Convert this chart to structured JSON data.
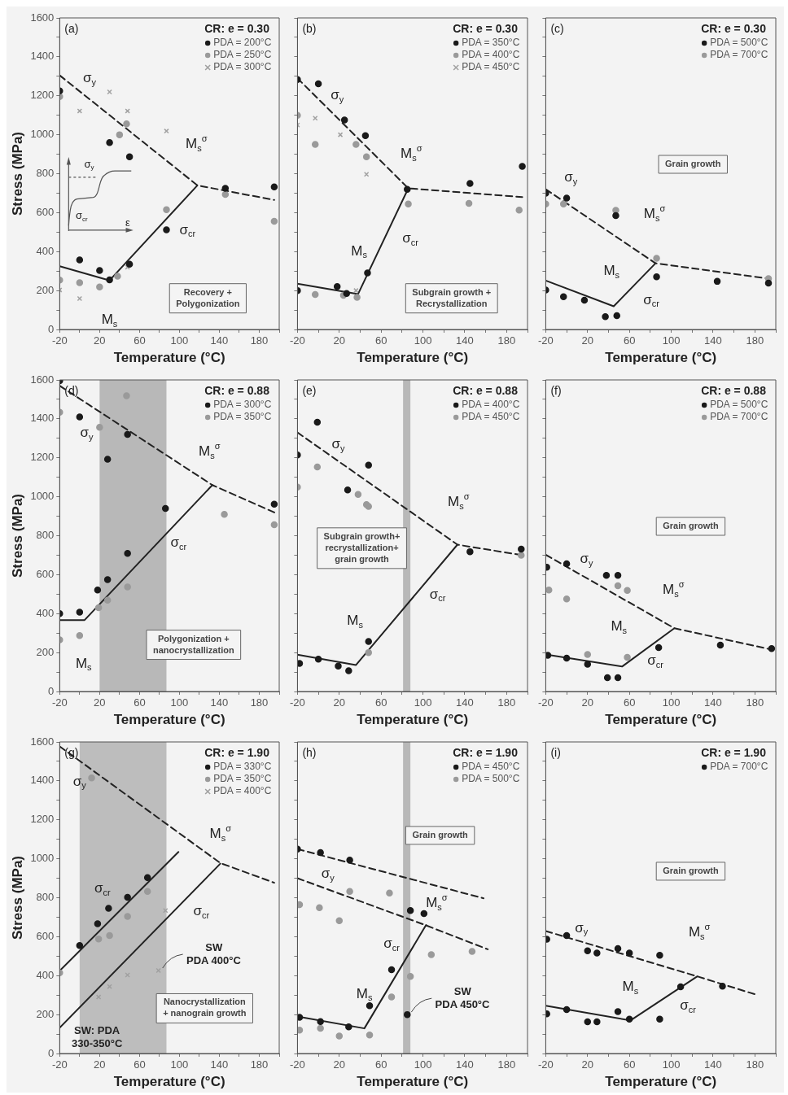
{
  "chart_data": [
    {
      "type": "scatter",
      "title": "(a)",
      "legend_title": "CR: e = 0.30",
      "legend": "top right",
      "xlabel": "Temperature (°C)",
      "ylabel": "Stress (MPa)",
      "xlim": [
        -20,
        200
      ],
      "ylim": [
        0,
        1600
      ],
      "xticks": [
        -20,
        {
          "value": 0,
          "label": null
        },
        20,
        {
          "value": 40,
          "label": null
        },
        60,
        {
          "value": 80,
          "label": null
        },
        100,
        {
          "value": 120,
          "label": null
        },
        140,
        {
          "value": 160,
          "label": null
        },
        180,
        {
          "value": 200,
          "label": null
        }
      ],
      "yticks": [
        0,
        {
          "value": 100,
          "label": null
        },
        200,
        {
          "value": 300,
          "label": null
        },
        400,
        {
          "value": 500,
          "label": null
        },
        600,
        {
          "value": 700,
          "label": null
        },
        800,
        {
          "value": 900,
          "label": null
        },
        1000,
        {
          "value": 1100,
          "label": null
        },
        1200,
        {
          "value": 1300,
          "label": null
        },
        1400,
        {
          "value": 1500,
          "label": null
        },
        1600
      ],
      "series": [
        {
          "name": "PDA = 200°C",
          "color": "#1a1a1a",
          "marker": "circle",
          "x": [
            -20,
            0,
            20,
            30,
            30,
            50,
            50,
            87,
            146,
            195
          ],
          "values": [
            1225,
            357,
            303,
            255,
            960,
            887,
            335,
            512,
            725,
            732
          ]
        },
        {
          "name": "PDA = 250°C",
          "color": "#9a9a9a",
          "marker": "circle",
          "x": [
            -20,
            -20,
            0,
            20,
            38,
            40,
            47,
            87,
            146,
            195
          ],
          "values": [
            1196,
            254,
            240,
            218,
            274,
            1000,
            1056,
            615,
            693,
            556
          ]
        },
        {
          "name": "PDA = 300°C",
          "color": "#a0a0a0",
          "marker": "cross",
          "x": [
            -20,
            0,
            0,
            30,
            48,
            48,
            87
          ],
          "values": [
            203,
            1122,
            159,
            1220,
            1122,
            320,
            1019
          ]
        },
        {
          "type": "line",
          "color": "#222222",
          "marker": "none",
          "line_style": "dashed",
          "x": [
            -20,
            118,
            195
          ],
          "values": [
            1305,
            740,
            665
          ]
        },
        {
          "type": "line",
          "color": "#222222",
          "marker": "none",
          "line_style": "solid",
          "x": [
            -20,
            30,
            118
          ],
          "values": [
            325,
            252,
            740
          ]
        }
      ],
      "annotations": [
        "Recovery +\nPolygonization",
        "σ$_{y}$",
        "σ$_{cr}$",
        "ε",
        "σ$_{y}$",
        "M$_{s}$$^{σ}$",
        "σ$_{cr}$",
        "M$_{s}$"
      ]
    },
    {
      "type": "scatter",
      "title": "(b)",
      "legend_title": "CR: e = 0.30",
      "legend": "top right",
      "xlabel": "Temperature (°C)",
      "tick_labels": "x",
      "xlim": [
        -20,
        200
      ],
      "ylim": [
        0,
        1600
      ],
      "xticks": [
        -20,
        {
          "value": 0,
          "label": null
        },
        20,
        {
          "value": 40,
          "label": null
        },
        60,
        {
          "value": 80,
          "label": null
        },
        100,
        {
          "value": 120,
          "label": null
        },
        140,
        {
          "value": 160,
          "label": null
        },
        180,
        {
          "value": 200,
          "label": null
        }
      ],
      "yticks": [
        0,
        {
          "value": 100,
          "label": null
        },
        200,
        {
          "value": 300,
          "label": null
        },
        400,
        {
          "value": 500,
          "label": null
        },
        600,
        {
          "value": 700,
          "label": null
        },
        800,
        {
          "value": 900,
          "label": null
        },
        1000,
        {
          "value": 1100,
          "label": null
        },
        1200,
        {
          "value": 1300,
          "label": null
        },
        1400,
        {
          "value": 1500,
          "label": null
        },
        1600
      ],
      "series": [
        {
          "name": "PDA = 350°C",
          "color": "#1a1a1a",
          "marker": "circle",
          "x": [
            -20,
            0,
            25,
            45,
            -20,
            18,
            27,
            47,
            85,
            145,
            195
          ],
          "values": [
            1284,
            1262,
            1076,
            995,
            200,
            220,
            185,
            290,
            720,
            750,
            838
          ]
        },
        {
          "name": "PDA = 400°C",
          "color": "#9a9a9a",
          "marker": "circle",
          "x": [
            -20,
            -3,
            36,
            46,
            86,
            144,
            192,
            -3,
            24,
            37
          ],
          "values": [
            1100,
            950,
            950,
            887,
            644,
            648,
            613,
            180,
            175,
            165
          ]
        },
        {
          "name": "PDA = 450°C",
          "color": "#a0a0a0",
          "marker": "cross",
          "x": [
            -20,
            -3,
            21,
            46,
            36
          ],
          "values": [
            1050,
            1085,
            1000,
            797,
            200
          ]
        },
        {
          "type": "line",
          "color": "#222222",
          "marker": "none",
          "line_style": "dashed",
          "x": [
            -20,
            86,
            195
          ],
          "values": [
            1290,
            725,
            680
          ]
        },
        {
          "type": "line",
          "color": "#222222",
          "marker": "none",
          "line_style": "solid",
          "x": [
            -20,
            38,
            86
          ],
          "values": [
            235,
            182,
            725
          ]
        }
      ],
      "annotations": [
        "Subgrain growth +\nRecrystallization",
        "σ$_{y}$",
        "M$_{s}$$^{σ}$",
        "M$_{s}$",
        "σ$_{cr}$"
      ]
    },
    {
      "type": "scatter",
      "title": "(c)",
      "legend_title": "CR: e = 0.30",
      "legend": "top right",
      "xlabel": "Temperature (°C)",
      "tick_labels": "x",
      "xlim": [
        -20,
        200
      ],
      "ylim": [
        0,
        1600
      ],
      "xticks": [
        -20,
        {
          "value": 0,
          "label": null
        },
        20,
        {
          "value": 40,
          "label": null
        },
        60,
        {
          "value": 80,
          "label": null
        },
        100,
        {
          "value": 120,
          "label": null
        },
        140,
        {
          "value": 160,
          "label": null
        },
        180,
        {
          "value": 200,
          "label": null
        }
      ],
      "yticks": [
        0,
        {
          "value": 100,
          "label": null
        },
        200,
        {
          "value": 300,
          "label": null
        },
        400,
        {
          "value": 500,
          "label": null
        },
        600,
        {
          "value": 700,
          "label": null
        },
        800,
        {
          "value": 900,
          "label": null
        },
        1000,
        {
          "value": 1100,
          "label": null
        },
        1200,
        {
          "value": 1300,
          "label": null
        },
        1400,
        {
          "value": 1500,
          "label": null
        },
        1600
      ],
      "series": [
        {
          "name": "PDA = 500°C",
          "color": "#1a1a1a",
          "marker": "circle",
          "x": [
            -20,
            0,
            47,
            -20,
            -3,
            17,
            37,
            48,
            86,
            144,
            193
          ],
          "values": [
            700,
            675,
            585,
            203,
            168,
            150,
            66,
            71,
            270,
            247,
            238
          ]
        },
        {
          "name": "PDA = 700°C",
          "color": "#9a9a9a",
          "marker": "circle",
          "x": [
            -20,
            -3,
            47,
            86,
            193
          ],
          "values": [
            644,
            644,
            612,
            366,
            261
          ]
        },
        {
          "type": "line",
          "color": "#222222",
          "marker": "none",
          "line_style": "dashed",
          "x": [
            -20,
            85,
            195
          ],
          "values": [
            720,
            340,
            260
          ]
        },
        {
          "type": "line",
          "color": "#222222",
          "marker": "none",
          "line_style": "solid",
          "x": [
            -20,
            45,
            85
          ],
          "values": [
            251,
            119,
            340
          ]
        }
      ],
      "annotations": [
        "Grain growth",
        "σ$_{y}$",
        "M$_{s}$",
        "M$_{s}$$^{σ}$",
        "σ$_{cr}$"
      ]
    },
    {
      "type": "scatter",
      "title": "(d)",
      "legend_title": "CR: e = 0.88",
      "legend": "top right",
      "xlabel": "Temperature (°C)",
      "ylabel": "Stress (MPa)",
      "xlim": [
        -20,
        200
      ],
      "ylim": [
        0,
        1600
      ],
      "xticks": [
        -20,
        {
          "value": 0,
          "label": null
        },
        20,
        {
          "value": 40,
          "label": null
        },
        60,
        {
          "value": 80,
          "label": null
        },
        100,
        {
          "value": 120,
          "label": null
        },
        140,
        {
          "value": 160,
          "label": null
        },
        180,
        {
          "value": 200,
          "label": null
        }
      ],
      "yticks": [
        0,
        {
          "value": 100,
          "label": null
        },
        200,
        {
          "value": 300,
          "label": null
        },
        400,
        {
          "value": 500,
          "label": null
        },
        600,
        {
          "value": 700,
          "label": null
        },
        800,
        {
          "value": 900,
          "label": null
        },
        1000,
        {
          "value": 1100,
          "label": null
        },
        1200,
        {
          "value": 1300,
          "label": null
        },
        1400,
        {
          "value": 1500,
          "label": null
        },
        1600
      ],
      "bands": [
        {
          "axis": "x",
          "from": 20,
          "to": 87,
          "color": "#b8b8b8"
        }
      ],
      "series": [
        {
          "name": "PDA = 300°C",
          "color": "#1a1a1a",
          "marker": "circle",
          "x": [
            -20,
            0,
            28,
            48,
            -20,
            0,
            18,
            28,
            48,
            86,
            195
          ],
          "values": [
            1596,
            1410,
            1193,
            1320,
            400,
            407,
            521,
            574,
            709,
            940,
            962
          ]
        },
        {
          "name": "PDA = 350°C",
          "color": "#9a9a9a",
          "marker": "circle",
          "x": [
            -20,
            47,
            20,
            19,
            28,
            48,
            145,
            195,
            -20,
            0
          ],
          "values": [
            1434,
            1519,
            1357,
            430,
            469,
            537,
            910,
            856,
            265,
            287
          ]
        },
        {
          "type": "line",
          "color": "#222222",
          "marker": "none",
          "line_style": "dashed",
          "x": [
            -20,
            133,
            197
          ],
          "values": [
            1570,
            1060,
            915
          ]
        },
        {
          "type": "line",
          "color": "#222222",
          "marker": "none",
          "line_style": "solid",
          "x": [
            -20,
            5,
            133
          ],
          "values": [
            367,
            367,
            1060
          ]
        }
      ],
      "annotations": [
        "Polygonization +\nnanocrystallization",
        "σ$_{y}$",
        "M$_{s}$$^{σ}$",
        "σ$_{cr}$",
        "M$_{s}$"
      ]
    },
    {
      "type": "scatter",
      "title": "(e)",
      "legend_title": "CR: e = 0.88",
      "legend": "top right",
      "xlabel": "Temperature (°C)",
      "tick_labels": "x",
      "xlim": [
        -20,
        200
      ],
      "ylim": [
        0,
        1600
      ],
      "xticks": [
        -20,
        {
          "value": 0,
          "label": null
        },
        20,
        {
          "value": 40,
          "label": null
        },
        60,
        {
          "value": 80,
          "label": null
        },
        100,
        {
          "value": 120,
          "label": null
        },
        140,
        {
          "value": 160,
          "label": null
        },
        180,
        {
          "value": 200,
          "label": null
        }
      ],
      "yticks": [
        0,
        {
          "value": 100,
          "label": null
        },
        200,
        {
          "value": 300,
          "label": null
        },
        400,
        {
          "value": 500,
          "label": null
        },
        600,
        {
          "value": 700,
          "label": null
        },
        800,
        {
          "value": 900,
          "label": null
        },
        1000,
        {
          "value": 1100,
          "label": null
        },
        1200,
        {
          "value": 1300,
          "label": null
        },
        1400,
        {
          "value": 1500,
          "label": null
        },
        1600
      ],
      "bands": [
        {
          "axis": "x",
          "from": 81,
          "to": 88,
          "color": "#b8b8b8"
        }
      ],
      "series": [
        {
          "name": "PDA = 400°C",
          "color": "#1a1a1a",
          "marker": "circle",
          "x": [
            -20,
            -1,
            28,
            48,
            -18,
            0,
            19,
            29,
            48,
            145,
            194
          ],
          "values": [
            1215,
            1383,
            1035,
            1162,
            144,
            166,
            131,
            107,
            257,
            718,
            731
          ]
        },
        {
          "name": "PDA = 450°C",
          "color": "#9a9a9a",
          "marker": "circle",
          "x": [
            -20,
            -1,
            38,
            46,
            48,
            48,
            194
          ],
          "values": [
            1050,
            1153,
            1012,
            960,
            950,
            200,
            700
          ]
        },
        {
          "type": "line",
          "color": "#222222",
          "marker": "none",
          "line_style": "dashed",
          "x": [
            -20,
            133,
            195
          ],
          "values": [
            1330,
            754,
            700
          ]
        },
        {
          "type": "line",
          "color": "#222222",
          "marker": "none",
          "line_style": "solid",
          "x": [
            -20,
            36,
            133
          ],
          "values": [
            189,
            136,
            754
          ]
        }
      ],
      "annotations": [
        "Subgrain growth+\nrecrystallization+\ngrain growth",
        "σ$_{y}$",
        "M$_{s}$$^{σ}$",
        "σ$_{cr}$",
        "M$_{s}$"
      ]
    },
    {
      "type": "scatter",
      "title": "(f)",
      "legend_title": "CR: e = 0.88",
      "legend": "top right",
      "xlabel": "Temperature (°C)",
      "tick_labels": "x",
      "xlim": [
        -20,
        200
      ],
      "ylim": [
        0,
        1600
      ],
      "xticks": [
        -20,
        {
          "value": 0,
          "label": null
        },
        20,
        {
          "value": 40,
          "label": null
        },
        60,
        {
          "value": 80,
          "label": null
        },
        100,
        {
          "value": 120,
          "label": null
        },
        140,
        {
          "value": 160,
          "label": null
        },
        180,
        {
          "value": 200,
          "label": null
        }
      ],
      "yticks": [
        0,
        {
          "value": 100,
          "label": null
        },
        200,
        {
          "value": 300,
          "label": null
        },
        400,
        {
          "value": 500,
          "label": null
        },
        600,
        {
          "value": 700,
          "label": null
        },
        800,
        {
          "value": 900,
          "label": null
        },
        1000,
        {
          "value": 1100,
          "label": null
        },
        1200,
        {
          "value": 1300,
          "label": null
        },
        1400,
        {
          "value": 1500,
          "label": null
        },
        1600
      ],
      "series": [
        {
          "name": "PDA = 500°C",
          "color": "#1a1a1a",
          "marker": "circle",
          "x": [
            -19,
            0,
            38,
            49,
            -18,
            0,
            20,
            39,
            49,
            88,
            147,
            196
          ],
          "values": [
            638,
            656,
            596,
            596,
            186,
            171,
            140,
            71,
            71,
            226,
            238,
            220
          ]
        },
        {
          "name": "PDA = 700°C",
          "color": "#9a9a9a",
          "marker": "circle",
          "x": [
            -17,
            0,
            49,
            58,
            20,
            58
          ],
          "values": [
            521,
            475,
            543,
            519,
            190,
            175
          ]
        },
        {
          "type": "line",
          "color": "#222222",
          "marker": "none",
          "line_style": "dashed",
          "x": [
            -20,
            103,
            196
          ],
          "values": [
            702,
            325,
            215
          ]
        },
        {
          "type": "line",
          "color": "#222222",
          "marker": "none",
          "line_style": "solid",
          "x": [
            -20,
            53,
            103
          ],
          "values": [
            190,
            128,
            325
          ]
        }
      ],
      "annotations": [
        "Grain growth",
        "σ$_{y}$",
        "M$_{s}$$^{σ}$",
        "M$_{s}$",
        "σ$_{cr}$"
      ]
    },
    {
      "type": "scatter",
      "title": "(g)",
      "legend_title": "CR: e = 1.90",
      "legend": "top right",
      "xlabel": "Temperature (°C)",
      "ylabel": "Stress (MPa)",
      "xlim": [
        -20,
        200
      ],
      "ylim": [
        0,
        1600
      ],
      "xticks": [
        -20,
        {
          "value": 0,
          "label": null
        },
        20,
        {
          "value": 40,
          "label": null
        },
        60,
        {
          "value": 80,
          "label": null
        },
        100,
        {
          "value": 120,
          "label": null
        },
        140,
        {
          "value": 160,
          "label": null
        },
        180,
        {
          "value": 200,
          "label": null
        }
      ],
      "yticks": [
        0,
        {
          "value": 100,
          "label": null
        },
        200,
        {
          "value": 300,
          "label": null
        },
        400,
        {
          "value": 500,
          "label": null
        },
        600,
        {
          "value": 700,
          "label": null
        },
        800,
        {
          "value": 900,
          "label": null
        },
        1000,
        {
          "value": 1100,
          "label": null
        },
        1200,
        {
          "value": 1300,
          "label": null
        },
        1400,
        {
          "value": 1500,
          "label": null
        },
        1600
      ],
      "bands": [
        {
          "axis": "x",
          "from": 0,
          "to": 87,
          "color": "#bdbdbd"
        }
      ],
      "series": [
        {
          "name": "PDA = 330°C",
          "color": "#1a1a1a",
          "marker": "circle",
          "x": [
            0,
            18,
            29,
            48,
            68
          ],
          "values": [
            555,
            666,
            746,
            802,
            903
          ]
        },
        {
          "name": "PDA = 350°C",
          "color": "#9a9a9a",
          "marker": "circle",
          "x": [
            -20,
            19,
            30,
            48,
            68,
            12
          ],
          "values": [
            415,
            588,
            606,
            704,
            832,
            1415
          ]
        },
        {
          "name": "PDA = 400°C",
          "color": "#a0a0a0",
          "marker": "cross",
          "x": [
            19,
            30,
            48,
            86,
            79
          ],
          "values": [
            290,
            344,
            403,
            734,
            426
          ]
        },
        {
          "type": "line",
          "color": "#222222",
          "marker": "none",
          "line_style": "dashed",
          "x": [
            -20,
            141,
            195
          ],
          "values": [
            1577,
            978,
            877
          ]
        },
        {
          "type": "line",
          "color": "#222222",
          "marker": "none",
          "line_style": "solid",
          "x": [
            -20,
            99
          ],
          "values": [
            425,
            1035
          ]
        },
        {
          "type": "line",
          "color": "#222222",
          "marker": "none",
          "line_style": "solid",
          "x": [
            -20,
            141
          ],
          "values": [
            132,
            975
          ]
        }
      ],
      "annotations": [
        "Nanocrystallization\n+ nanograin growth",
        "SW: PDA\n330-350°C",
        "σ$_{y}$",
        "M$_{s}$$^{σ}$",
        "σ$_{cr}$",
        "σ$_{cr}$",
        {
          "text": "SW\nPDA 400°C",
          "x": 79,
          "y": 426
        }
      ]
    },
    {
      "type": "scatter",
      "title": "(h)",
      "legend_title": "CR: e = 1.90",
      "legend": "top right",
      "xlabel": "Temperature (°C)",
      "tick_labels": "x",
      "xlim": [
        -20,
        200
      ],
      "ylim": [
        0,
        1600
      ],
      "xticks": [
        -20,
        {
          "value": 0,
          "label": null
        },
        20,
        {
          "value": 40,
          "label": null
        },
        60,
        {
          "value": 80,
          "label": null
        },
        100,
        {
          "value": 120,
          "label": null
        },
        140,
        {
          "value": 160,
          "label": null
        },
        180,
        {
          "value": 200,
          "label": null
        }
      ],
      "yticks": [
        0,
        {
          "value": 100,
          "label": null
        },
        200,
        {
          "value": 300,
          "label": null
        },
        400,
        {
          "value": 500,
          "label": null
        },
        600,
        {
          "value": 700,
          "label": null
        },
        800,
        {
          "value": 900,
          "label": null
        },
        1000,
        {
          "value": 1100,
          "label": null
        },
        1200,
        {
          "value": 1300,
          "label": null
        },
        1400,
        {
          "value": 1500,
          "label": null
        },
        1600
      ],
      "bands": [
        {
          "axis": "x",
          "from": 81,
          "to": 88,
          "color": "#b8b8b8"
        }
      ],
      "series": [
        {
          "name": "PDA = 450°C",
          "color": "#1a1a1a",
          "marker": "circle",
          "x": [
            -20,
            2,
            30,
            88,
            101,
            70,
            49,
            -18,
            2,
            29,
            85
          ],
          "values": [
            1050,
            1032,
            993,
            734,
            719,
            430,
            245,
            186,
            164,
            137,
            200
          ]
        },
        {
          "name": "PDA = 500°C",
          "color": "#9a9a9a",
          "marker": "circle",
          "x": [
            -18,
            1,
            20,
            30,
            68,
            108,
            147,
            88,
            70,
            49,
            -18,
            2,
            20
          ],
          "values": [
            764,
            749,
            682,
            832,
            824,
            508,
            524,
            396,
            290,
            95,
            120,
            130,
            90
          ]
        },
        {
          "type": "line",
          "color": "#222222",
          "marker": "none",
          "line_style": "dashed",
          "x": [
            -20,
            158
          ],
          "values": [
            1050,
            797
          ]
        },
        {
          "type": "line",
          "color": "#222222",
          "marker": "none",
          "line_style": "dashed",
          "x": [
            -20,
            101,
            162
          ],
          "values": [
            900,
            662,
            535
          ]
        },
        {
          "type": "line",
          "color": "#222222",
          "marker": "none",
          "line_style": "solid",
          "x": [
            -20,
            44,
            103
          ],
          "values": [
            190,
            129,
            660
          ]
        }
      ],
      "annotations": [
        "Grain growth",
        "σ$_{y}$",
        "M$_{s}$$^{σ}$",
        "σ$_{cr}$",
        "M$_{s}$",
        {
          "text": "SW\nPDA 450°C",
          "x": 85,
          "y": 200
        }
      ]
    },
    {
      "type": "scatter",
      "title": "(i)",
      "legend_title": "CR: e = 1.90",
      "legend": "top right",
      "xlabel": "Temperature (°C)",
      "tick_labels": "x",
      "xlim": [
        -20,
        200
      ],
      "ylim": [
        0,
        1600
      ],
      "xticks": [
        -20,
        {
          "value": 0,
          "label": null
        },
        20,
        {
          "value": 40,
          "label": null
        },
        60,
        {
          "value": 80,
          "label": null
        },
        100,
        {
          "value": 120,
          "label": null
        },
        140,
        {
          "value": 160,
          "label": null
        },
        180,
        {
          "value": 200,
          "label": null
        }
      ],
      "yticks": [
        0,
        {
          "value": 100,
          "label": null
        },
        200,
        {
          "value": 300,
          "label": null
        },
        400,
        {
          "value": 500,
          "label": null
        },
        600,
        {
          "value": 700,
          "label": null
        },
        800,
        {
          "value": 900,
          "label": null
        },
        1000,
        {
          "value": 1100,
          "label": null
        },
        1200,
        {
          "value": 1300,
          "label": null
        },
        1400,
        {
          "value": 1500,
          "label": null
        },
        1600
      ],
      "series": [
        {
          "name": "PDA = 700°C",
          "color": "#1a1a1a",
          "marker": "circle",
          "x": [
            -19,
            0,
            20,
            29,
            49,
            60,
            89,
            149,
            -19,
            0,
            20,
            29,
            49,
            60,
            89,
            109
          ],
          "values": [
            587,
            606,
            527,
            516,
            539,
            516,
            504,
            346,
            204,
            226,
            163,
            163,
            215,
            177,
            177,
            343
          ]
        },
        {
          "type": "line",
          "color": "#222222",
          "marker": "none",
          "line_style": "dashed",
          "x": [
            -20,
            125,
            182
          ],
          "values": [
            629,
            396,
            301
          ]
        },
        {
          "type": "line",
          "color": "#222222",
          "marker": "none",
          "line_style": "solid",
          "x": [
            -20,
            61,
            125
          ],
          "values": [
            245,
            170,
            396
          ]
        }
      ],
      "annotations": [
        "Grain growth",
        "σ$_{y}$",
        "M$_{s}$$^{σ}$",
        "M$_{s}$",
        "σ$_{cr}$"
      ]
    }
  ]
}
